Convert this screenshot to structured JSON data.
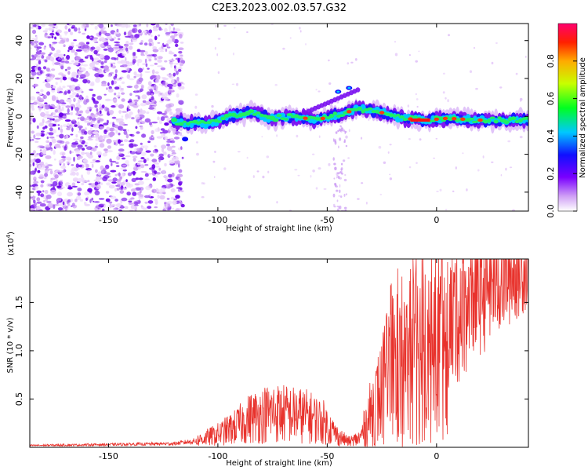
{
  "title": "C2E3.2023.002.03.57.G32",
  "colors": {
    "snr_line": "#e8322c",
    "axis": "#000000"
  },
  "chart_data": [
    {
      "type": "heatmap",
      "xlabel": "Height of straight line (km)",
      "ylabel": "Frequency (Hz)",
      "xlim": [
        -186,
        42
      ],
      "ylim": [
        -50,
        49
      ],
      "xticks": [
        -150,
        -100,
        -50,
        0
      ],
      "yticks": [
        -40,
        -20,
        0,
        20,
        40
      ],
      "colorbar": {
        "label": "Normalized spectral amplitude",
        "range": [
          0.0,
          1.0
        ],
        "ticks": [
          "0.0",
          "0.2",
          "0.4",
          "0.6",
          "0.8"
        ],
        "tick_values": [
          0.0,
          0.2,
          0.4,
          0.6,
          0.8
        ]
      },
      "ridge": [
        {
          "x": -118,
          "y": -3
        },
        {
          "x": -105,
          "y": -4
        },
        {
          "x": -95,
          "y": 0
        },
        {
          "x": -85,
          "y": 2
        },
        {
          "x": -75,
          "y": -1
        },
        {
          "x": -65,
          "y": 0
        },
        {
          "x": -55,
          "y": -2
        },
        {
          "x": -45,
          "y": 1
        },
        {
          "x": -35,
          "y": 4
        },
        {
          "x": -25,
          "y": 2
        },
        {
          "x": -15,
          "y": -1
        },
        {
          "x": -5,
          "y": -2
        },
        {
          "x": 5,
          "y": -1
        },
        {
          "x": 20,
          "y": -2
        },
        {
          "x": 40,
          "y": -2
        }
      ]
    },
    {
      "type": "line",
      "xlabel": "Height of straight line (km)",
      "ylabel": "SNR (10 * v/v)",
      "multiplier": "(x10",
      "multiplier_exp": "4",
      "multiplier_close": ")",
      "xlim": [
        -186,
        42
      ],
      "ylim": [
        0,
        1.95
      ],
      "xticks": [
        -150,
        -100,
        -50,
        0
      ],
      "yticks": [
        "0.5",
        "1.0",
        "1.5"
      ],
      "ytick_values": [
        0.5,
        1.0,
        1.5
      ],
      "series": [
        {
          "envelope": [
            {
              "x": -186,
              "y": 0.02
            },
            {
              "x": -150,
              "y": 0.03
            },
            {
              "x": -120,
              "y": 0.04
            },
            {
              "x": -110,
              "y": 0.07
            },
            {
              "x": -100,
              "y": 0.14
            },
            {
              "x": -92,
              "y": 0.22
            },
            {
              "x": -85,
              "y": 0.32
            },
            {
              "x": -75,
              "y": 0.38
            },
            {
              "x": -68,
              "y": 0.36
            },
            {
              "x": -60,
              "y": 0.34
            },
            {
              "x": -52,
              "y": 0.28
            },
            {
              "x": -45,
              "y": 0.12
            },
            {
              "x": -40,
              "y": 0.06
            },
            {
              "x": -35,
              "y": 0.1
            },
            {
              "x": -30,
              "y": 0.38
            },
            {
              "x": -25,
              "y": 0.6
            },
            {
              "x": -20,
              "y": 0.9
            },
            {
              "x": -15,
              "y": 0.8
            },
            {
              "x": -10,
              "y": 1.0
            },
            {
              "x": -5,
              "y": 1.12
            },
            {
              "x": 0,
              "y": 1.2
            },
            {
              "x": 5,
              "y": 1.3
            },
            {
              "x": 10,
              "y": 1.45
            },
            {
              "x": 15,
              "y": 1.6
            },
            {
              "x": 20,
              "y": 1.7
            },
            {
              "x": 25,
              "y": 1.76
            },
            {
              "x": 30,
              "y": 1.8
            },
            {
              "x": 35,
              "y": 1.83
            },
            {
              "x": 42,
              "y": 1.86
            }
          ]
        }
      ]
    }
  ]
}
